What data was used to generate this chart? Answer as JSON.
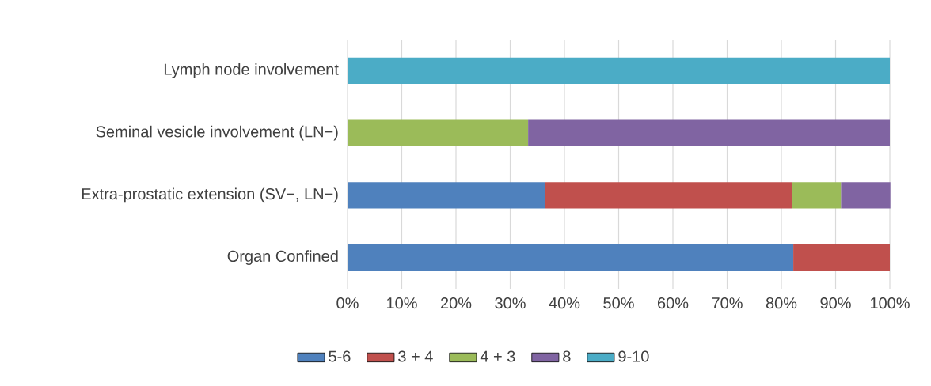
{
  "chart_data": {
    "type": "bar",
    "orientation": "horizontal",
    "stacked": true,
    "categories": [
      "Lymph node involvement",
      "Seminal vesicle involvement (LN−)",
      "Extra-prostatic extension (SV−, LN−)",
      "Organ Confined"
    ],
    "series": [
      {
        "name": "5-6",
        "color": "#4f81bd",
        "values": [
          null,
          null,
          36.4,
          82.2
        ]
      },
      {
        "name": "3 + 4",
        "color": "#c0504d",
        "values": [
          null,
          null,
          45.5,
          17.8
        ]
      },
      {
        "name": "4 + 3",
        "color": "#9bbb59",
        "values": [
          null,
          33.3,
          9.1,
          null
        ]
      },
      {
        "name": "8",
        "color": "#8064a2",
        "values": [
          null,
          66.7,
          9.1,
          null
        ]
      },
      {
        "name": "9-10",
        "color": "#4bacc6",
        "values": [
          100,
          null,
          null,
          null
        ]
      }
    ],
    "xlim": [
      0,
      100
    ],
    "xticks": [
      {
        "value": 0,
        "label": "0%"
      },
      {
        "value": 10,
        "label": "10%"
      },
      {
        "value": 20,
        "label": "20%"
      },
      {
        "value": 30,
        "label": "30%"
      },
      {
        "value": 40,
        "label": "40%"
      },
      {
        "value": 50,
        "label": "50%"
      },
      {
        "value": 60,
        "label": "60%"
      },
      {
        "value": 70,
        "label": "70%"
      },
      {
        "value": 80,
        "label": "80%"
      },
      {
        "value": 90,
        "label": "90%"
      },
      {
        "value": 100,
        "label": "100%"
      }
    ],
    "grid": "x",
    "legend": "bottom"
  }
}
